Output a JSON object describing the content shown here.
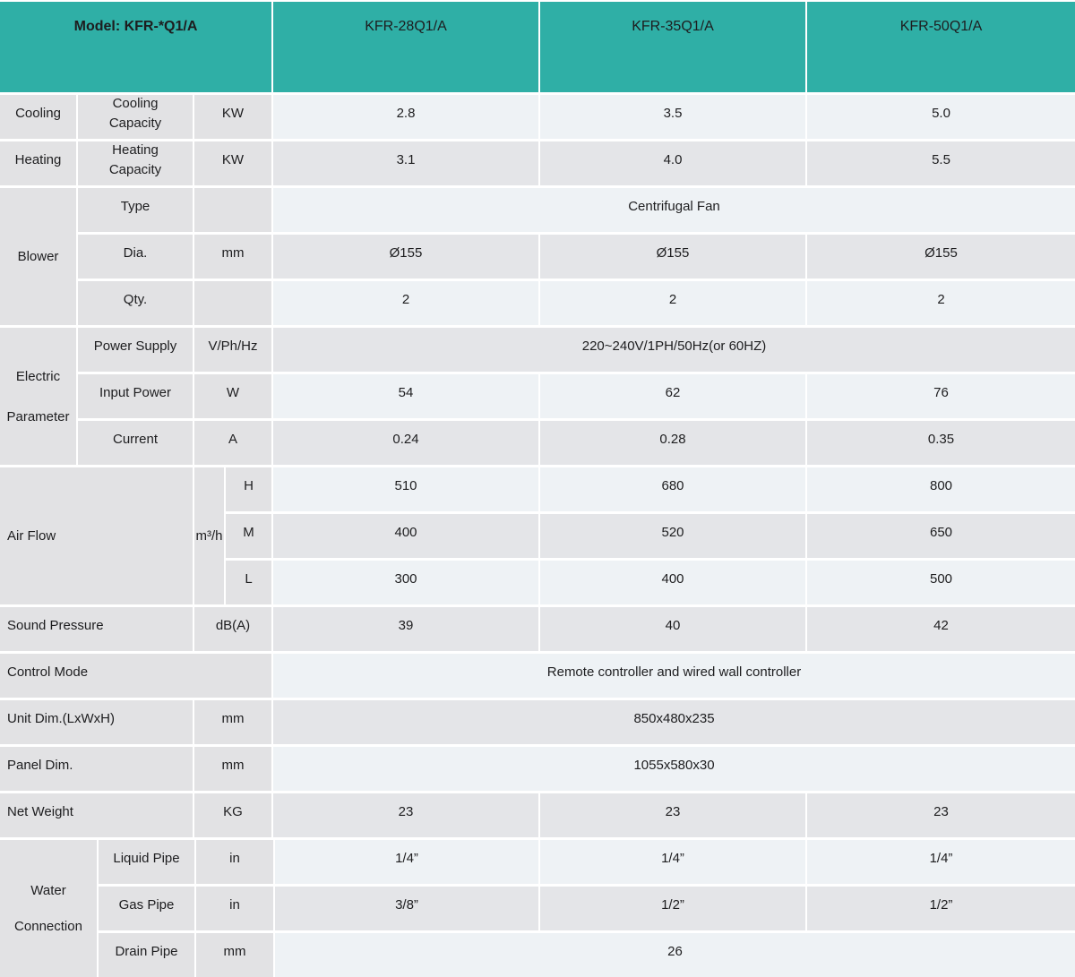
{
  "colors": {
    "header_bg": "#2fafa6",
    "label_cell_bg": "#e2e2e4",
    "data_row_light_bg": "#eef2f5",
    "data_row_dark_bg": "#e4e5e8",
    "gap": "#ffffff",
    "text": "#1d1d1f"
  },
  "header": {
    "model": "Model: KFR-*Q1/A",
    "models": [
      "KFR-28Q1/A",
      "KFR-35Q1/A",
      "KFR-50Q1/A"
    ]
  },
  "rows": {
    "cooling": {
      "group": "Cooling",
      "label": "Cooling Capacity",
      "unit": "KW",
      "values": [
        "2.8",
        "3.5",
        "5.0"
      ]
    },
    "heating": {
      "group": "Heating",
      "label": "Heating Capacity",
      "unit": "KW",
      "values": [
        "3.1",
        "4.0",
        "5.5"
      ]
    },
    "blower": {
      "group": "Blower",
      "type": {
        "label": "Type",
        "unit": "",
        "value": "Centrifugal Fan"
      },
      "dia": {
        "label": "Dia.",
        "unit": "mm",
        "values": [
          "Ø155",
          "Ø155",
          "Ø155"
        ]
      },
      "qty": {
        "label": "Qty.",
        "unit": "",
        "values": [
          "2",
          "2",
          "2"
        ]
      }
    },
    "electric": {
      "group": "Electric Parameter",
      "power_supply": {
        "label": "Power Supply",
        "unit": "V/Ph/Hz",
        "value": "220~240V/1PH/50Hz(or 60HZ)"
      },
      "input_power": {
        "label": "Input Power",
        "unit": "W",
        "values": [
          "54",
          "62",
          "76"
        ]
      },
      "current": {
        "label": "Current",
        "unit": "A",
        "values": [
          "0.24",
          "0.28",
          "0.35"
        ]
      }
    },
    "air_flow": {
      "label": "Air Flow",
      "unit": "m³/h",
      "h": {
        "label": "H",
        "values": [
          "510",
          "680",
          "800"
        ]
      },
      "m": {
        "label": "M",
        "values": [
          "400",
          "520",
          "650"
        ]
      },
      "l": {
        "label": "L",
        "values": [
          "300",
          "400",
          "500"
        ]
      }
    },
    "sound": {
      "label": "Sound Pressure",
      "unit": "dB(A)",
      "values": [
        "39",
        "40",
        "42"
      ]
    },
    "control": {
      "label": "Control Mode",
      "value": "Remote controller and wired wall controller"
    },
    "unit_dim": {
      "label": "Unit Dim.(LxWxH)",
      "unit": "mm",
      "value": "850x480x235"
    },
    "panel_dim": {
      "label": "Panel Dim.",
      "unit": "mm",
      "value": "1055x580x30"
    },
    "net_weight": {
      "label": "Net Weight",
      "unit": "KG",
      "values": [
        "23",
        "23",
        "23"
      ]
    },
    "water": {
      "group": "Water Connection",
      "liquid": {
        "label": "Liquid Pipe",
        "unit": "in",
        "values": [
          "1/4”",
          "1/4”",
          "1/4”"
        ]
      },
      "gas": {
        "label": "Gas Pipe",
        "unit": "in",
        "values": [
          "3/8”",
          "1/2”",
          "1/2”"
        ]
      },
      "drain": {
        "label": "Drain Pipe",
        "unit": "mm",
        "value": "26"
      }
    }
  }
}
